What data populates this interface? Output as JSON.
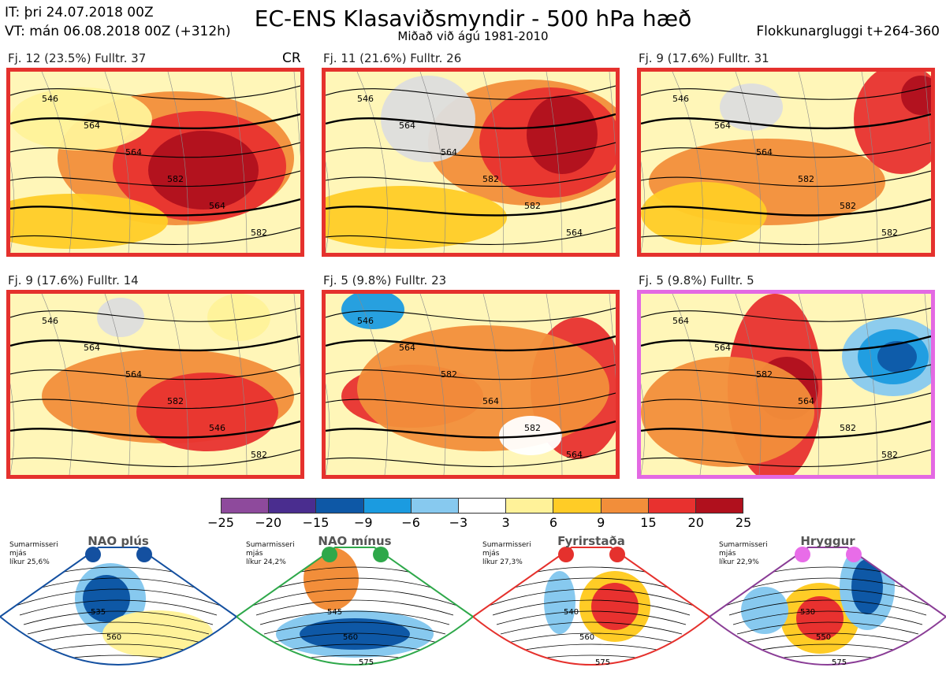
{
  "header": {
    "it": "IT: þri 24.07.2018 00Z",
    "vt": "VT: mán 06.08.2018 00Z  (+312h)",
    "title": "EC-ENS Klasaviðsmyndir - 500 hPa hæð",
    "subtitle": "Miðað við ágú 1981-2010",
    "window": "Flokkunargluggi t+264-360"
  },
  "panels": [
    {
      "label": "Fj. 12 (23.5%)   Fulltr. 37",
      "border": "#e5312d",
      "tag": "CR",
      "contours": [
        "546",
        "564",
        "564",
        "582",
        "564",
        "582"
      ]
    },
    {
      "label": "Fj. 11 (21.6%)   Fulltr. 26",
      "border": "#e5312d",
      "contours": [
        "546",
        "564",
        "564",
        "582",
        "582",
        "564"
      ]
    },
    {
      "label": "Fj. 9 (17.6%)   Fulltr. 31",
      "border": "#e5312d",
      "contours": [
        "546",
        "564",
        "564",
        "582",
        "582",
        "582"
      ]
    },
    {
      "label": "Fj. 9 (17.6%)   Fulltr. 14",
      "border": "#e5312d",
      "contours": [
        "546",
        "564",
        "564",
        "582",
        "546",
        "582"
      ]
    },
    {
      "label": "Fj. 5 (9.8%)   Fulltr. 23",
      "border": "#e5312d",
      "contours": [
        "546",
        "564",
        "582",
        "564",
        "582",
        "564"
      ]
    },
    {
      "label": "Fj. 5 (9.8%)   Fulltr. 5",
      "border": "#e369e3",
      "contours": [
        "564",
        "564",
        "582",
        "564",
        "582",
        "582"
      ]
    }
  ],
  "colorbar": {
    "colors": [
      "#8e4a9c",
      "#4a2d8f",
      "#0e58a6",
      "#1b9be0",
      "#87c9ef",
      "#ffffff",
      "#fff299",
      "#ffcc26",
      "#f28e3a",
      "#e8312f",
      "#b0101d"
    ],
    "ticks": [
      "−25",
      "−20",
      "−15",
      "−9",
      "−6",
      "−3",
      "3",
      "6",
      "9",
      "15",
      "20",
      "25"
    ]
  },
  "regimes": [
    {
      "name": "NAO plús",
      "note": "Sumarmisseri\nmjás\nlíkur 25,6%",
      "color": "#1450a0",
      "dot": "#1450a0",
      "contours": [
        "535",
        "560"
      ]
    },
    {
      "name": "NAO mínus",
      "note": "Sumarmisseri\nmjás\nlíkur 24,2%",
      "color": "#2ea84a",
      "dot": "#2ea84a",
      "contours": [
        "545",
        "560",
        "575"
      ]
    },
    {
      "name": "Fyrirstaða",
      "note": "Sumarmisseri\nmjás\nlíkur 27,3%",
      "color": "#e5312d",
      "dot": "#e5312d",
      "contours": [
        "540",
        "560",
        "575"
      ]
    },
    {
      "name": "Hryggur",
      "note": "Sumarmisseri\nmjás\nlíkur 22,9%",
      "color": "#8a3d96",
      "dot": "#e86ce8",
      "contours": [
        "530",
        "550",
        "575"
      ]
    }
  ]
}
